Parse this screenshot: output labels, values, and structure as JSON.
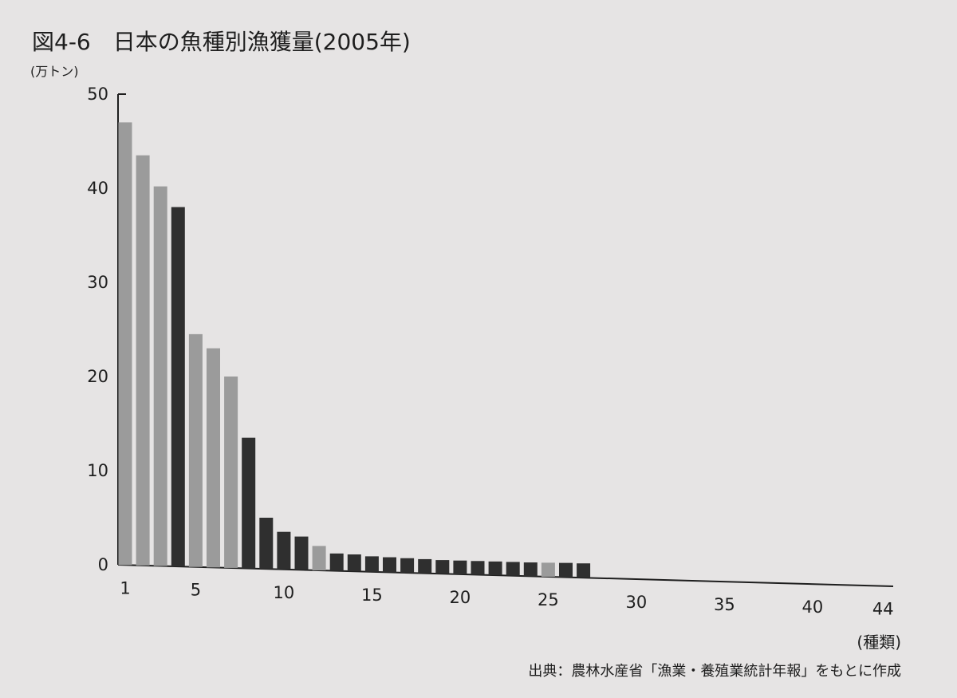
{
  "chart_data": {
    "type": "bar",
    "title": "図4-6　日本の魚種別漁獲量(2005年)",
    "ylabel": "(万トン)",
    "xlabel": "(種類)",
    "source": "出典：農林水産省「漁業・養殖業統計年報」をもとに作成",
    "ylim": [
      0,
      50
    ],
    "xlim": [
      1,
      44
    ],
    "y_ticks": [
      "0",
      "10",
      "20",
      "30",
      "40",
      "50"
    ],
    "x_ticks": [
      "1",
      "5",
      "10",
      "15",
      "20",
      "25",
      "30",
      "35",
      "40",
      "44"
    ],
    "grid": false,
    "colors": {
      "light": "#9b9b9b",
      "dark": "#2f2f2f",
      "axis": "#1e1e1e"
    },
    "categories": [
      1,
      2,
      3,
      4,
      5,
      6,
      7,
      8,
      9,
      10,
      11,
      12,
      13,
      14,
      15,
      16,
      17,
      18,
      19,
      20,
      21,
      22,
      23,
      24,
      25,
      26,
      27
    ],
    "values": [
      47.0,
      43.5,
      40.2,
      38.0,
      24.5,
      23.0,
      20.0,
      13.5,
      5.0,
      3.5,
      3.0,
      2.0,
      1.2,
      1.1,
      0.9,
      0.8,
      0.7,
      0.6,
      0.5,
      0.45,
      0.4,
      0.35,
      0.3,
      0.25,
      0.22,
      0.2,
      0.15
    ],
    "shades": [
      "light",
      "light",
      "light",
      "dark",
      "light",
      "light",
      "light",
      "dark",
      "dark",
      "dark",
      "dark",
      "light",
      "dark",
      "dark",
      "dark",
      "dark",
      "dark",
      "dark",
      "dark",
      "dark",
      "dark",
      "dark",
      "dark",
      "dark",
      "light",
      "dark",
      "dark"
    ]
  }
}
